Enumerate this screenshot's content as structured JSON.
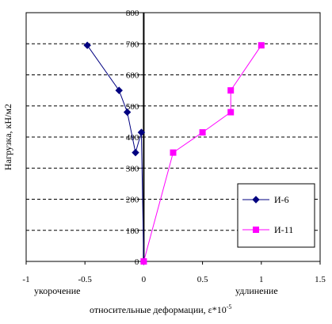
{
  "chart_data": {
    "type": "line",
    "xlabel": "относительные деформации, ε*10",
    "xlabel_sup": "-5",
    "ylabel": "Нагрузка, кН/м2",
    "xlim": [
      -1,
      1.5
    ],
    "ylim": [
      0,
      800
    ],
    "x_ticks": [
      -1,
      -0.5,
      0,
      0.5,
      1,
      1.5
    ],
    "y_ticks": [
      0,
      100,
      200,
      300,
      400,
      500,
      600,
      700,
      800
    ],
    "x_tick_labels": [
      "-1",
      "-0.5",
      "0",
      "0.5",
      "1",
      "1.5"
    ],
    "y_tick_labels": [
      "0",
      "100",
      "200",
      "300",
      "400",
      "500",
      "600",
      "700",
      "800"
    ],
    "annotations": {
      "left": "укорочение",
      "right": "удлинение"
    },
    "grid": "horizontal dashed",
    "legend_position": "right",
    "series": [
      {
        "name": "И-6",
        "color": "#000080",
        "marker": "diamond",
        "points": [
          {
            "x": 0,
            "y": 0
          },
          {
            "x": -0.02,
            "y": 415
          },
          {
            "x": -0.07,
            "y": 350
          },
          {
            "x": -0.14,
            "y": 480
          },
          {
            "x": -0.21,
            "y": 550
          },
          {
            "x": -0.48,
            "y": 695
          }
        ]
      },
      {
        "name": "И-11",
        "color": "#ff00ff",
        "marker": "square",
        "points": [
          {
            "x": 0,
            "y": 0
          },
          {
            "x": 0.25,
            "y": 350
          },
          {
            "x": 0.5,
            "y": 415
          },
          {
            "x": 0.74,
            "y": 480
          },
          {
            "x": 0.74,
            "y": 550
          },
          {
            "x": 1.0,
            "y": 695
          }
        ]
      }
    ]
  }
}
